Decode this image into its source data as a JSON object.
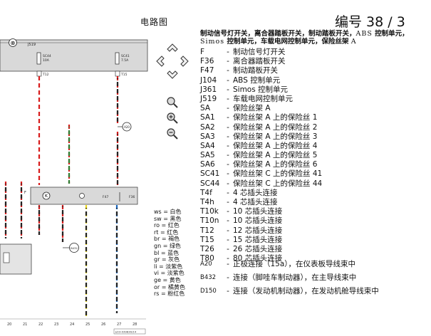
{
  "doc_title": "电路图",
  "page_number": "编号 38 / 3",
  "controls": {
    "arrows": [
      "nav-up-icon",
      "nav-left-icon",
      "nav-right-icon",
      "nav-down-icon"
    ],
    "tools": [
      "magnifier-icon",
      "zoom-in-icon",
      "zoom-out-icon"
    ]
  },
  "heading": {
    "part1": "制动信号灯开关，离合器踏板开关，制动踏板开关，",
    "abs": "ABS",
    "part2": " 控制单元，",
    "simos": "Simos",
    "part3": " 控制单元，车载电网控制单元，保险丝架 ",
    "part4": "A"
  },
  "legend": [
    {
      "code": "F",
      "desc": "制动信号灯开关"
    },
    {
      "code": "F36",
      "desc": "离合器踏板开关"
    },
    {
      "code": "F47",
      "desc": "制动踏板开关"
    },
    {
      "code": "J104",
      "desc": "ABS 控制单元"
    },
    {
      "code": "J361",
      "desc": "Simos 控制单元"
    },
    {
      "code": "J519",
      "desc": "车载电网控制单元"
    },
    {
      "code": "SA",
      "desc": "保险丝架 A"
    },
    {
      "code": "SA1",
      "desc": "保险丝架 A 上的保险丝 1"
    },
    {
      "code": "SA2",
      "desc": "保险丝架 A 上的保险丝 2"
    },
    {
      "code": "SA3",
      "desc": "保险丝架 A 上的保险丝 3"
    },
    {
      "code": "SA4",
      "desc": "保险丝架 A 上的保险丝 4"
    },
    {
      "code": "SA5",
      "desc": "保险丝架 A 上的保险丝 5"
    },
    {
      "code": "SA6",
      "desc": "保险丝架 A 上的保险丝 6"
    },
    {
      "code": "SC41",
      "desc": "保险丝架 C 上的保险丝 41"
    },
    {
      "code": "SC44",
      "desc": "保险丝架 C 上的保险丝 44"
    },
    {
      "code": "T4f",
      "desc": "4 芯插头连接"
    },
    {
      "code": "T4h",
      "desc": "4 芯插头连接"
    },
    {
      "code": "T10k",
      "desc": "10 芯插头连接"
    },
    {
      "code": "T10n",
      "desc": "10 芯插头连接"
    },
    {
      "code": "T12",
      "desc": "12 芯插头连接"
    },
    {
      "code": "T15",
      "desc": "15 芯插头连接"
    },
    {
      "code": "T26",
      "desc": "26 芯插头连接"
    },
    {
      "code": "T80",
      "desc": "80 芯插头连接"
    }
  ],
  "legend_connections": [
    {
      "code": "A20",
      "desc": "正极连接（15a），在仪表板导线束中"
    },
    {
      "code": "B432",
      "desc": "连接（脚哇车制动器），在主导线束中"
    },
    {
      "code": "D150",
      "desc": "连接（发动机制动器），在发动机舱导线束中"
    }
  ],
  "colors": [
    "ws = 白色",
    "sw = 黑色",
    "ro = 红色",
    "rt = 红色",
    "br = 褐色",
    "gn = 绿色",
    "bl = 蓝色",
    "gr = 灰色",
    "li = 淡紫色",
    "vi = 淡紫色",
    "ge = 黄色",
    "or = 橘黄色",
    "rs = 粉红色"
  ],
  "schematic": {
    "top_tag": "⊗",
    "top_label": "J519",
    "fuse_left": "SC44",
    "fuse_left_value": "10A",
    "fuse_right": "SC41",
    "fuse_right_value": "7.5A",
    "pin_left": "T12",
    "pin_right": "T15",
    "label_a20": "A20",
    "label_b432": "B432",
    "label_f": "F",
    "label_f47": "F47",
    "label_f36": "F36",
    "label_k": "K",
    "axis": [
      "20",
      "21",
      "22",
      "23",
      "24",
      "25",
      "26",
      "27",
      "28"
    ],
    "page_ref": "J/23-039830/14"
  }
}
